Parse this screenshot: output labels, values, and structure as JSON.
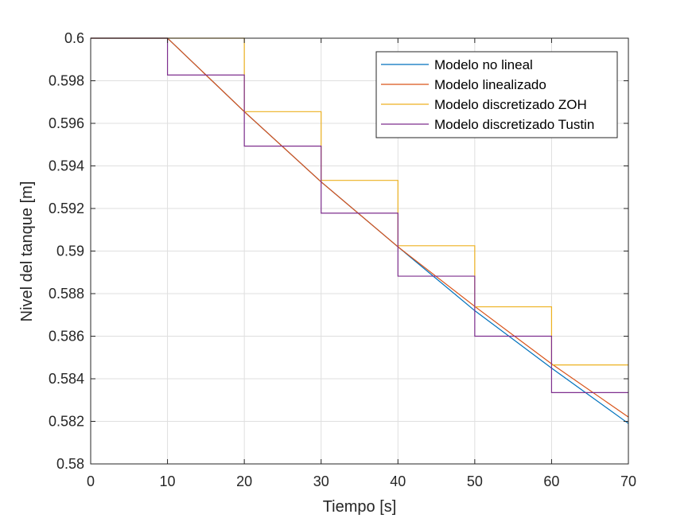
{
  "chart_data": {
    "type": "line",
    "xlabel": "Tiempo [s]",
    "ylabel": "Nivel del tanque [m]",
    "xlim": [
      0,
      70
    ],
    "ylim": [
      0.58,
      0.6
    ],
    "x_ticks": [
      0,
      10,
      20,
      30,
      40,
      50,
      60,
      70
    ],
    "x_tick_labels": [
      "0",
      "10",
      "20",
      "30",
      "40",
      "50",
      "60",
      "70"
    ],
    "y_ticks": [
      0.58,
      0.582,
      0.584,
      0.586,
      0.588,
      0.59,
      0.592,
      0.594,
      0.596,
      0.598,
      0.6
    ],
    "y_tick_labels": [
      "0.58",
      "0.582",
      "0.584",
      "0.586",
      "0.588",
      "0.59",
      "0.592",
      "0.594",
      "0.596",
      "0.598",
      "0.6"
    ],
    "grid": true,
    "legend_position": "top-right",
    "series": [
      {
        "name": "Modelo no lineal",
        "color": "#0072BD",
        "style": "line",
        "x": [
          0,
          10,
          20,
          30,
          40,
          50,
          60,
          70
        ],
        "y": [
          0.6,
          0.6,
          0.59655,
          0.59325,
          0.5902,
          0.5872,
          0.5845,
          0.5819
        ]
      },
      {
        "name": "Modelo linealizado",
        "color": "#D95319",
        "style": "line",
        "x": [
          0,
          10,
          20,
          30,
          40,
          50,
          60,
          70
        ],
        "y": [
          0.6,
          0.6,
          0.59655,
          0.59325,
          0.5902,
          0.5874,
          0.5847,
          0.5822
        ]
      },
      {
        "name": "Modelo discretizado ZOH",
        "color": "#EDB120",
        "style": "stairs",
        "x": [
          0,
          10,
          20,
          30,
          40,
          50,
          60,
          70
        ],
        "y": [
          0.6,
          0.6,
          0.59655,
          0.59332,
          0.59025,
          0.58738,
          0.58465,
          0.58465
        ]
      },
      {
        "name": "Modelo discretizado Tustin",
        "color": "#7E2F8E",
        "style": "stairs",
        "x": [
          0,
          10,
          20,
          30,
          40,
          50,
          60,
          70
        ],
        "y": [
          0.6,
          0.59827,
          0.59493,
          0.59178,
          0.58882,
          0.586,
          0.58335,
          0.58335
        ]
      }
    ]
  }
}
